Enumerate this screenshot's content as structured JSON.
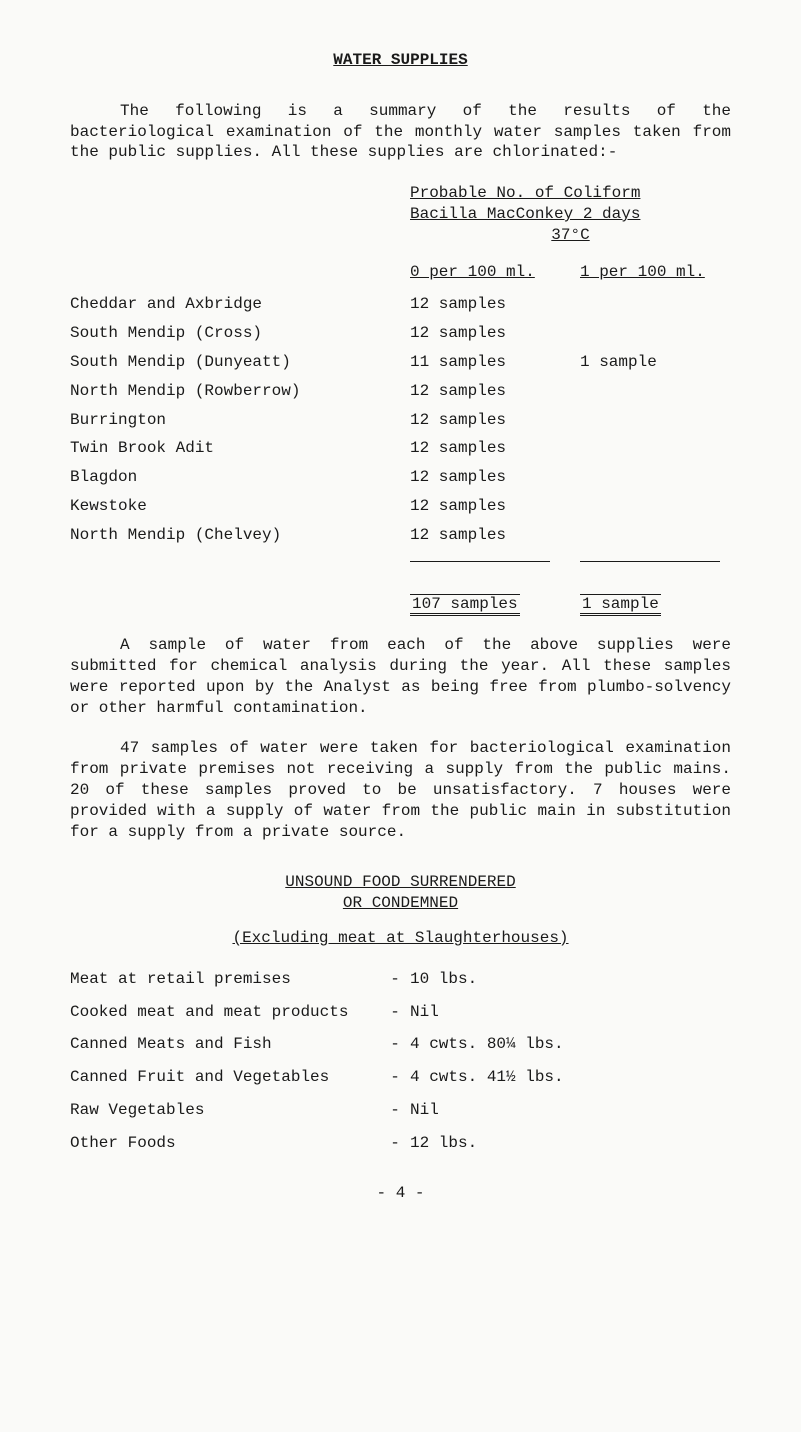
{
  "title": "WATER SUPPLIES",
  "intro": "The following is a summary of the results of the bacteriological examination of the monthly water samples taken from the public supplies. All these supplies are chlorinated:-",
  "tableHeader": {
    "line1": "Probable No. of Coliform",
    "line2": "Bacilla MacConkey 2 days",
    "line3": "37°C"
  },
  "columnHeaders": {
    "mid": "0 per 100 ml.",
    "right": "1 per 100 ml."
  },
  "rows": [
    {
      "label": "Cheddar and Axbridge",
      "mid": "12 samples",
      "right": ""
    },
    {
      "label": "South Mendip (Cross)",
      "mid": "12 samples",
      "right": ""
    },
    {
      "label": "South Mendip (Dunyeatt)",
      "mid": "11 samples",
      "right": "1 sample"
    },
    {
      "label": "North Mendip (Rowberrow)",
      "mid": "12 samples",
      "right": ""
    },
    {
      "label": "Burrington",
      "mid": "12 samples",
      "right": ""
    },
    {
      "label": "Twin Brook Adit",
      "mid": "12 samples",
      "right": ""
    },
    {
      "label": "Blagdon",
      "mid": "12 samples",
      "right": ""
    },
    {
      "label": "Kewstoke",
      "mid": "12 samples",
      "right": ""
    },
    {
      "label": "North Mendip (Chelvey)",
      "mid": "12 samples",
      "right": ""
    }
  ],
  "totals": {
    "mid": "107 samples",
    "right": "1 sample"
  },
  "para2": "A sample of water from each of the above supplies were submitted for chemical analysis during the year. All these samples were reported upon by the Analyst as being free from plumbo-solvency or other harmful contamination.",
  "para3": "47 samples of water were taken for bacteriological examination from private premises not receiving a supply from the public mains. 20 of these samples proved to be unsatisfactory. 7 houses were provided with a supply of water from the public main in substitution for a supply from a private source.",
  "section2": {
    "title1": "UNSOUND FOOD SURRENDERED",
    "title2": "OR CONDEMNED",
    "excluding": "(Excluding meat at Slaughterhouses)"
  },
  "foods": [
    {
      "label": "Meat at retail premises",
      "value": "10 lbs."
    },
    {
      "label": "Cooked meat and meat products",
      "value": "Nil"
    },
    {
      "label": "Canned Meats and Fish",
      "value": "4 cwts. 80¼ lbs."
    },
    {
      "label": "Canned Fruit and Vegetables",
      "value": "4 cwts. 41½ lbs."
    },
    {
      "label": "Raw Vegetables",
      "value": "Nil"
    },
    {
      "label": "Other Foods",
      "value": "12 lbs."
    }
  ],
  "pageNum": "- 4 -"
}
